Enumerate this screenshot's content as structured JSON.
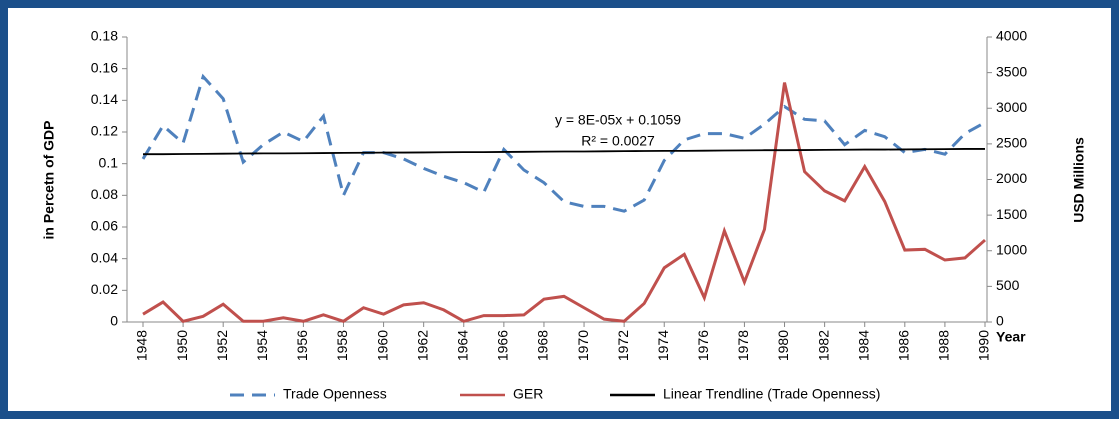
{
  "chart_data": {
    "type": "line",
    "y_label": "in Percetn of GDP",
    "y2_label": "USD Millions",
    "x_label": "Year",
    "annotations": [
      "y = 8E-05x + 0.1059",
      "R² = 0.0027"
    ],
    "x": [
      1948,
      1949,
      1950,
      1951,
      1952,
      1953,
      1954,
      1955,
      1956,
      1957,
      1958,
      1959,
      1960,
      1961,
      1962,
      1963,
      1964,
      1965,
      1966,
      1967,
      1968,
      1969,
      1970,
      1971,
      1972,
      1973,
      1974,
      1975,
      1976,
      1977,
      1978,
      1979,
      1980,
      1981,
      1982,
      1983,
      1984,
      1985,
      1986,
      1987,
      1988,
      1989,
      1990
    ],
    "xlim": [
      1948,
      1990
    ],
    "xticks": [
      1948,
      1950,
      1952,
      1954,
      1956,
      1958,
      1960,
      1962,
      1964,
      1966,
      1968,
      1970,
      1972,
      1974,
      1976,
      1978,
      1980,
      1982,
      1984,
      1986,
      1988,
      1990
    ],
    "ylim": [
      0,
      0.18
    ],
    "yticks": [
      0,
      0.02,
      0.04,
      0.06,
      0.08,
      0.1,
      0.12,
      0.14,
      0.16,
      0.18
    ],
    "y2lim": [
      0,
      4000
    ],
    "y2ticks": [
      0,
      500,
      1000,
      1500,
      2000,
      2500,
      3000,
      3500,
      4000
    ],
    "legend": "bottom",
    "series": [
      {
        "name": "Trade Openness",
        "color": "#4f81bd",
        "dash": true,
        "values": [
          0.103,
          0.124,
          0.113,
          0.155,
          0.141,
          0.101,
          0.112,
          0.12,
          0.114,
          0.13,
          0.08,
          0.107,
          0.107,
          0.103,
          0.097,
          0.092,
          0.088,
          0.082,
          0.109,
          0.096,
          0.088,
          0.076,
          0.073,
          0.073,
          0.07,
          0.077,
          0.102,
          0.115,
          0.119,
          0.119,
          0.116,
          0.125,
          0.136,
          0.128,
          0.127,
          0.112,
          0.121,
          0.117,
          0.107,
          0.109,
          0.106,
          0.119,
          0.126
        ]
      },
      {
        "name": "GER",
        "color": "#c0504d",
        "axis": "y2",
        "values": [
          110,
          280,
          10,
          80,
          250,
          10,
          10,
          60,
          10,
          100,
          10,
          200,
          110,
          240,
          270,
          170,
          10,
          90,
          90,
          100,
          320,
          360,
          200,
          40,
          10,
          260,
          760,
          950,
          340,
          1280,
          560,
          1300,
          3360,
          2110,
          1840,
          1700,
          2180,
          1690,
          1010,
          1020,
          870,
          900,
          1150
        ]
      },
      {
        "name": "Linear Trendline (Trade Openness)",
        "color": "#000000",
        "values": [
          0.106,
          0.106,
          0.1061,
          0.1062,
          0.1063,
          0.1064,
          0.1065,
          0.1065,
          0.1066,
          0.1067,
          0.1068,
          0.1069,
          0.107,
          0.107,
          0.1071,
          0.1072,
          0.1073,
          0.1073,
          0.1074,
          0.1075,
          0.1076,
          0.1077,
          0.1077,
          0.1078,
          0.1079,
          0.108,
          0.1081,
          0.1081,
          0.1082,
          0.1083,
          0.1084,
          0.1085,
          0.1085,
          0.1086,
          0.1087,
          0.1088,
          0.1089,
          0.1089,
          0.109,
          0.1091,
          0.1092,
          0.1093,
          0.1093
        ]
      }
    ]
  }
}
